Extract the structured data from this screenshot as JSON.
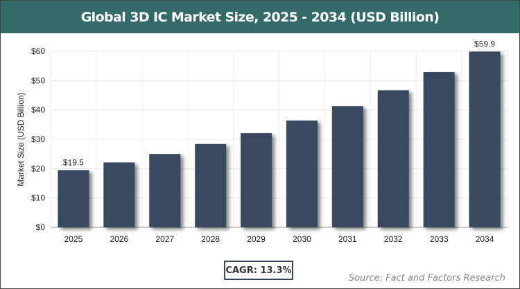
{
  "chart_data": {
    "type": "bar",
    "title": "Global 3D IC Market Size, 2025 - 2034 (USD Billion)",
    "xlabel": "",
    "ylabel": "Market Size (USD Billion)",
    "categories": [
      "2025",
      "2026",
      "2027",
      "2028",
      "2029",
      "2030",
      "2031",
      "2032",
      "2033",
      "2034"
    ],
    "values": [
      19.5,
      22.1,
      25.0,
      28.4,
      32.1,
      36.4,
      41.3,
      46.7,
      52.9,
      59.9
    ],
    "data_labels": {
      "0": "$19.5",
      "9": "$59.9"
    },
    "ylim": [
      0,
      60
    ],
    "yticks": [
      "$0",
      "$10",
      "$20",
      "$30",
      "$40",
      "$50",
      "$60"
    ],
    "grid": true,
    "bar_color": "#374a5f"
  },
  "cagr_label": "CAGR: 13.3%",
  "source": "Source: Fact and Factors Research"
}
